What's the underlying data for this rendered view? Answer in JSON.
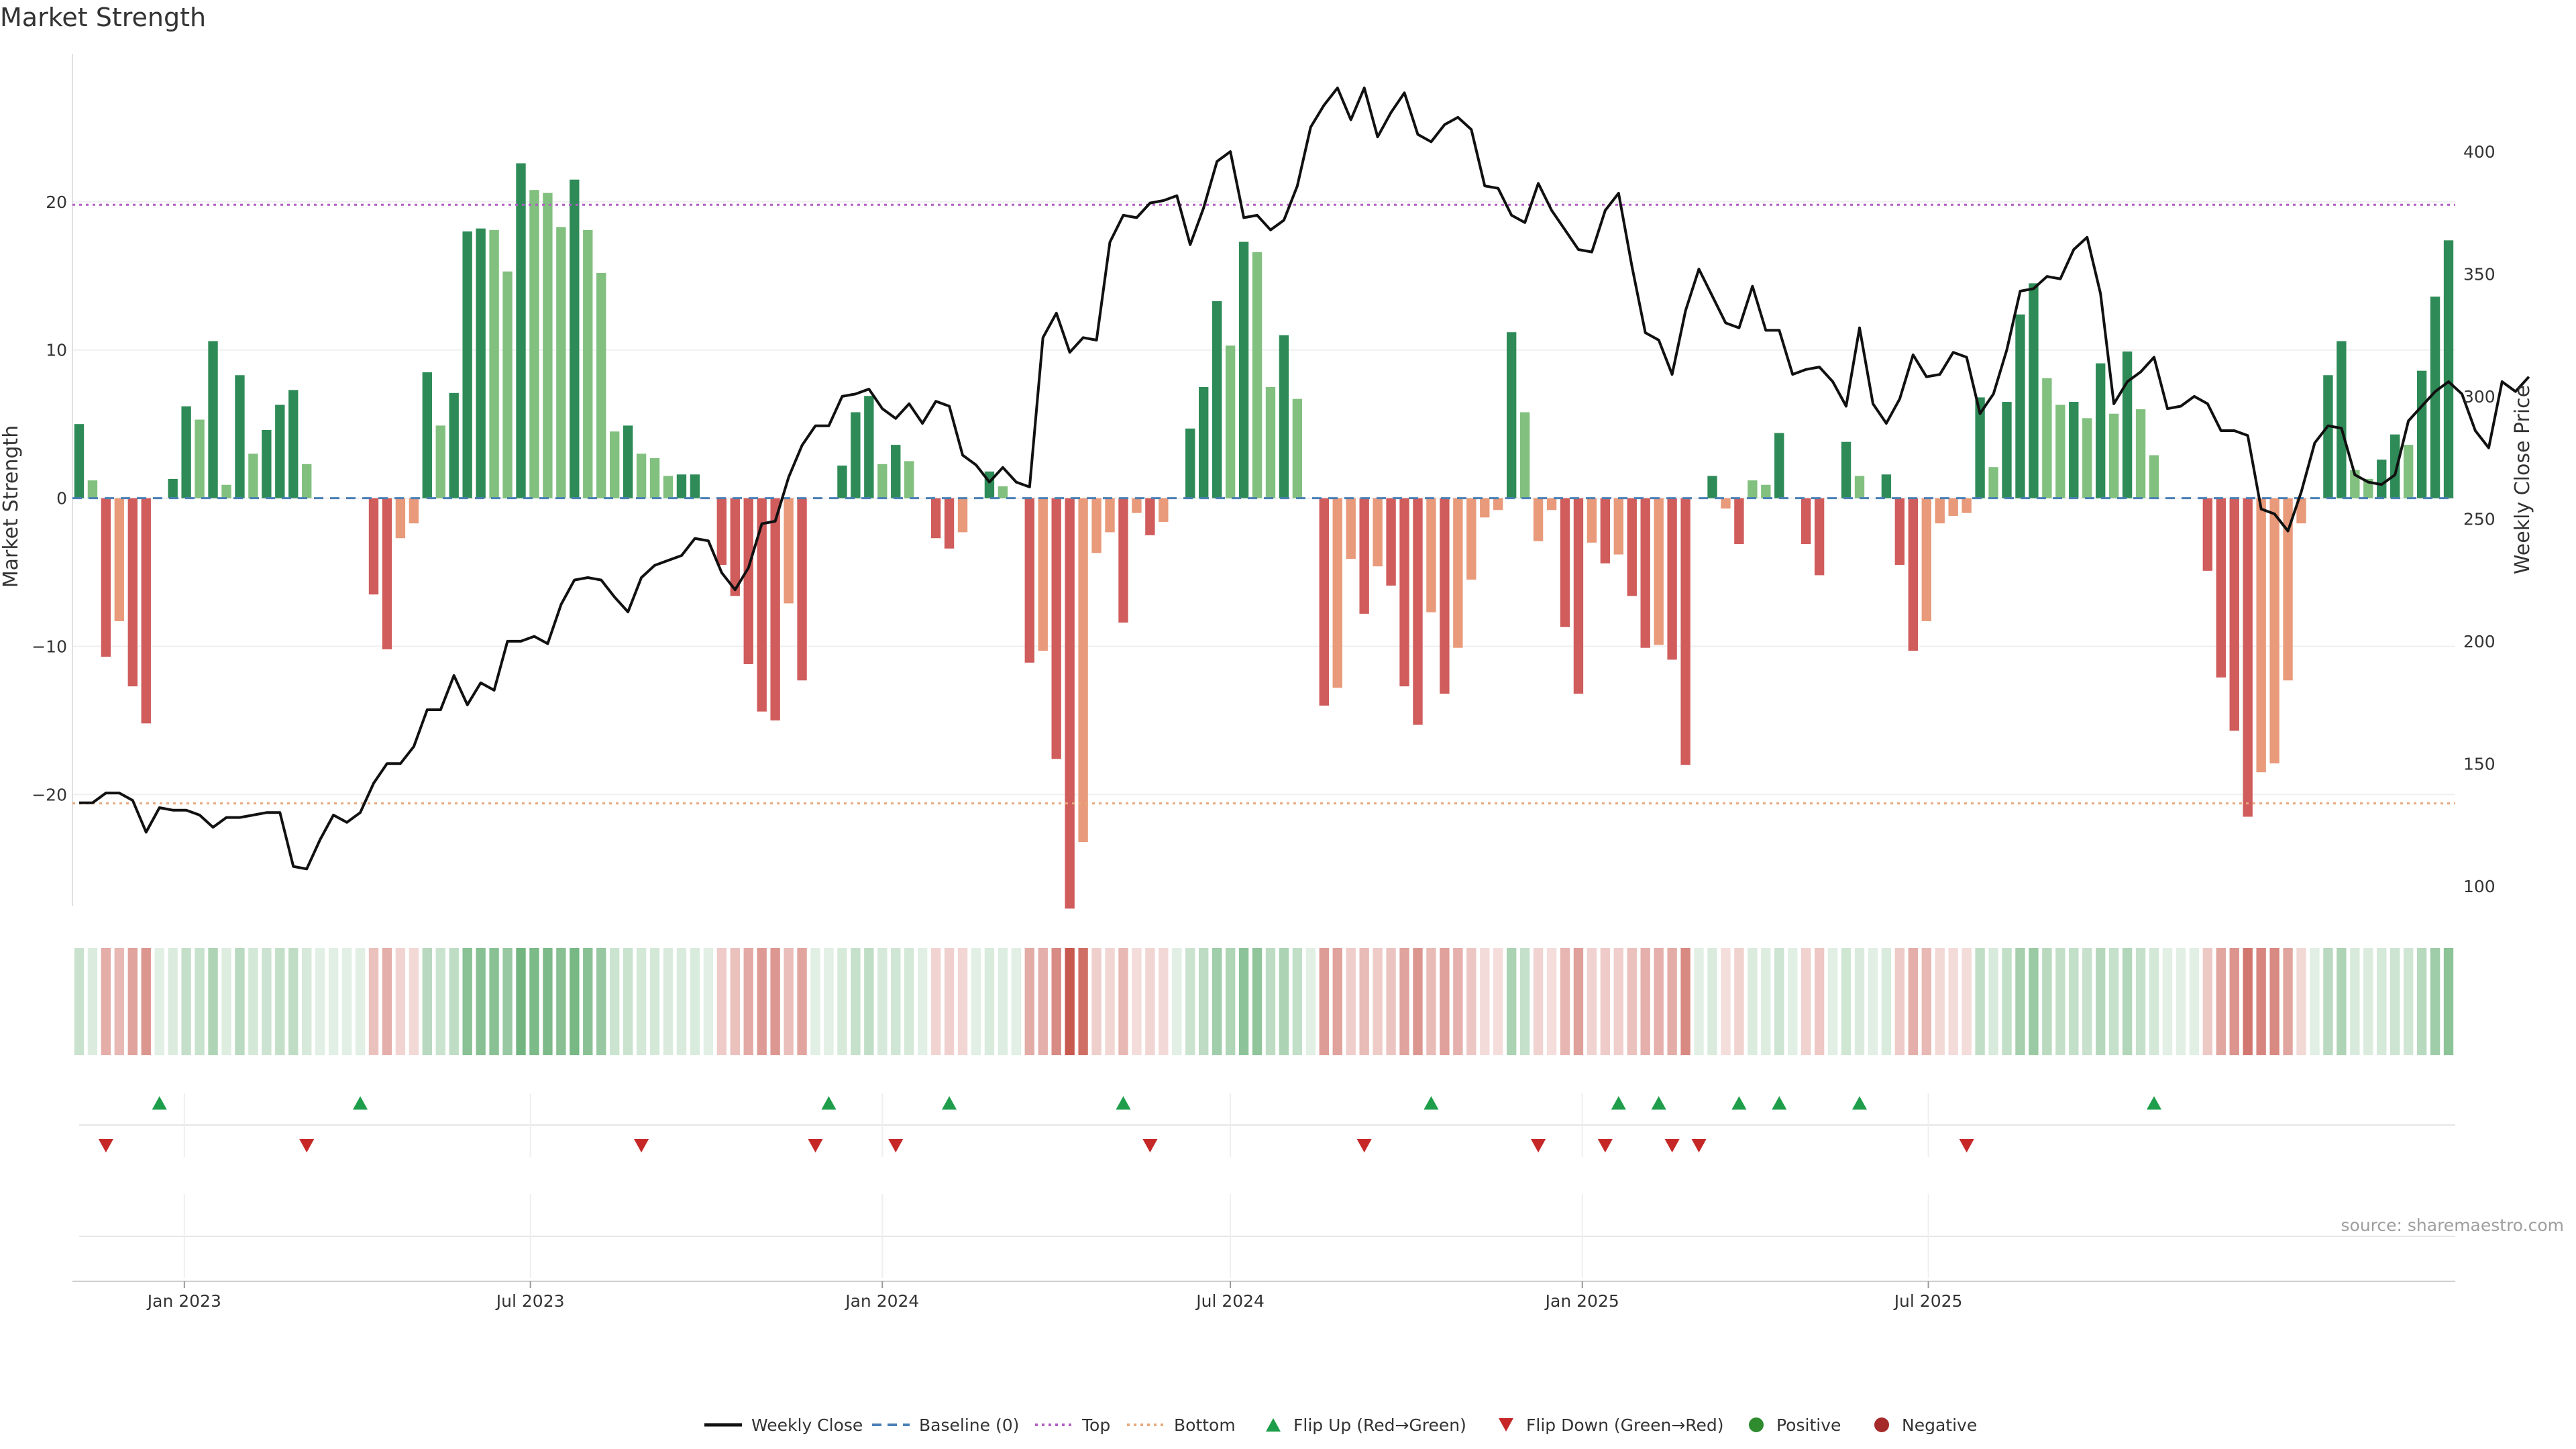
{
  "title": "Market Strength",
  "source": "source: sharemaestro.com",
  "colors": {
    "strong_green": "#2e8b57",
    "light_green": "#81c07e",
    "strong_red": "#d05c5c",
    "light_red": "#e89a7a",
    "price_line": "#111111",
    "baseline": "#4a7fb5",
    "top": "#b25fc4",
    "bottom": "#e8a87c",
    "flip_up": "#1e9e4a",
    "flip_down": "#c62828",
    "positive": "#2e8b2e",
    "negative": "#a52a2a"
  },
  "chart_data": {
    "type": "bar",
    "title": "Market Strength",
    "ylabel": "Market Strength",
    "y2label": "Weekly Close Price",
    "ylim": [
      -27.5,
      30
    ],
    "y2lim": [
      92,
      440
    ],
    "yticks": [
      "20",
      "10",
      "0",
      "−10",
      "−20"
    ],
    "yticks_values": [
      20,
      10,
      0,
      -10,
      -20
    ],
    "y2ticks": [
      "400",
      "350",
      "300",
      "250",
      "200",
      "150",
      "100"
    ],
    "y2ticks_values": [
      400,
      350,
      300,
      250,
      200,
      150,
      100
    ],
    "xlim": [
      "2022-11-07",
      "2025-10-27"
    ],
    "xticks": [
      "Jan 2023",
      "Jul 2023",
      "Jan 2024",
      "Jul 2024",
      "Jan 2025",
      "Jul 2025"
    ],
    "xticks_dates": [
      "2023-01-01",
      "2023-07-01",
      "2024-01-01",
      "2024-07-01",
      "2025-01-01",
      "2025-07-01"
    ],
    "first_week": "2022-11-07",
    "top_level": 19.8,
    "bottom_level": -20.6,
    "strength": [
      5,
      1.2,
      -10.7,
      -8.3,
      -12.7,
      -15.2,
      0,
      1.3,
      6.2,
      5.3,
      10.6,
      0.9,
      8.3,
      3,
      4.6,
      6.3,
      7.3,
      2.3,
      0,
      0,
      0,
      0,
      -6.5,
      -10.2,
      -2.7,
      -1.7,
      8.5,
      4.9,
      7.1,
      18,
      18.2,
      18.1,
      15.3,
      22.6,
      20.8,
      20.6,
      18.3,
      21.5,
      18.1,
      15.2,
      4.5,
      4.9,
      3,
      2.7,
      1.5,
      1.6,
      1.6,
      0,
      -4.5,
      -6.6,
      -11.2,
      -14.4,
      -15,
      -7.1,
      -12.3,
      0,
      0,
      2.2,
      5.8,
      6.9,
      2.3,
      3.6,
      2.5,
      0,
      -2.7,
      -3.4,
      -2.3,
      0,
      1.8,
      0.8,
      0,
      -11.1,
      -10.3,
      -17.6,
      -27.7,
      -23.2,
      -3.7,
      -2.3,
      -8.4,
      -1,
      -2.5,
      -1.6,
      0,
      4.7,
      7.5,
      13.3,
      10.3,
      17.3,
      16.6,
      7.5,
      11,
      6.7,
      0,
      -14,
      -12.8,
      -4.1,
      -7.8,
      -4.6,
      -5.9,
      -12.7,
      -15.3,
      -7.7,
      -13.2,
      -10.1,
      -5.5,
      -1.3,
      -0.8,
      11.2,
      5.8,
      -2.9,
      -0.8,
      -8.7,
      -13.2,
      -3,
      -4.4,
      -3.8,
      -6.6,
      -10.1,
      -9.9,
      -10.9,
      -18,
      0,
      1.5,
      -0.7,
      -3.1,
      1.2,
      0.9,
      4.4,
      0,
      -3.1,
      -5.2,
      0,
      3.8,
      1.5,
      0,
      1.6,
      -4.5,
      -10.3,
      -8.3,
      -1.7,
      -1.2,
      -1,
      6.8,
      2.1,
      6.5,
      12.4,
      14.5,
      8.1,
      6.3,
      6.5,
      5.4,
      9.1,
      5.7,
      9.9,
      6,
      2.9,
      0,
      0,
      0,
      -4.9,
      -12.1,
      -15.7,
      -21.5,
      -18.5,
      -17.9,
      -12.3,
      -1.7,
      0,
      8.3,
      10.6,
      1.9,
      1.3,
      2.6,
      4.3,
      3.6,
      8.6,
      13.6,
      17.4
    ],
    "price": [
      134,
      134,
      138,
      138,
      135,
      122,
      132,
      131,
      131,
      129,
      124,
      128,
      128,
      129,
      130,
      130,
      108,
      107,
      119,
      129,
      126,
      130,
      142,
      150,
      150,
      157,
      172,
      172,
      186,
      174,
      183,
      180,
      200,
      200,
      202,
      199,
      215,
      225,
      226,
      225,
      218,
      212,
      226,
      231,
      233,
      235,
      242,
      241,
      228,
      221,
      230,
      248,
      249,
      267,
      280,
      288,
      288,
      300,
      301,
      303,
      295,
      291,
      297,
      289,
      298,
      296,
      276,
      272,
      265,
      271,
      265,
      263,
      324,
      334,
      318,
      324,
      323,
      363,
      374,
      373,
      379,
      380,
      382,
      362,
      377,
      396,
      400,
      373,
      374,
      368,
      372,
      386,
      410,
      419,
      426,
      413,
      426,
      406,
      416,
      424,
      407,
      404,
      411,
      414,
      409,
      386,
      385,
      374,
      371,
      387,
      376,
      368,
      360,
      359,
      376,
      383,
      353,
      326,
      323,
      309,
      335,
      352,
      341,
      330,
      328,
      345,
      327,
      327,
      309,
      311,
      312,
      306,
      296,
      328,
      297,
      289,
      299,
      317,
      308,
      309,
      318,
      316,
      293,
      301,
      319,
      343,
      344,
      349,
      348,
      360,
      365,
      342,
      297,
      306,
      310,
      316,
      295,
      296,
      300,
      297,
      286,
      286,
      284,
      254,
      252,
      245,
      261,
      281,
      288,
      287,
      268,
      265,
      264,
      268,
      290,
      296,
      302,
      306,
      301,
      286,
      279,
      306,
      302,
      308
    ],
    "flip_up_weeks": [
      6,
      21,
      56,
      65,
      78,
      101,
      115,
      118,
      124,
      127,
      133,
      155
    ],
    "flip_down_weeks": [
      2,
      17,
      42,
      55,
      61,
      80,
      96,
      109,
      114,
      119,
      121,
      141
    ],
    "xticks_weeks": [
      7.86,
      33.71,
      60.0,
      86.0,
      112.29,
      138.14
    ],
    "legend": [
      "Weekly Close",
      "Baseline (0)",
      "Top",
      "Bottom",
      "Flip Up (Red→Green)",
      "Flip Down (Green→Red)",
      "Positive",
      "Negative"
    ]
  }
}
